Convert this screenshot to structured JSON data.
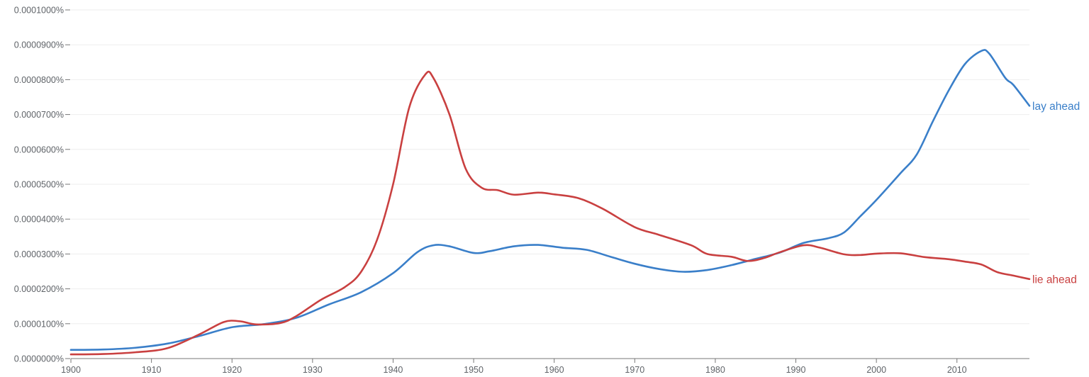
{
  "chart_data": {
    "type": "line",
    "xlim": [
      1900,
      2019
    ],
    "ylim": [
      0,
      1e-07
    ],
    "grid": true,
    "x_ticks": [
      1900,
      1910,
      1920,
      1930,
      1940,
      1950,
      1960,
      1970,
      1980,
      1990,
      2000,
      2010
    ],
    "y_ticks": [
      {
        "value": 0,
        "label": "0.0000000%"
      },
      {
        "value": 1e-08,
        "label": "0.0000100%"
      },
      {
        "value": 2e-08,
        "label": "0.0000200%"
      },
      {
        "value": 3e-08,
        "label": "0.0000300%"
      },
      {
        "value": 4e-08,
        "label": "0.0000400%"
      },
      {
        "value": 5e-08,
        "label": "0.0000500%"
      },
      {
        "value": 6e-08,
        "label": "0.0000600%"
      },
      {
        "value": 7e-08,
        "label": "0.0000700%"
      },
      {
        "value": 8e-08,
        "label": "0.0000800%"
      },
      {
        "value": 9e-08,
        "label": "0.0000900%"
      },
      {
        "value": 1e-07,
        "label": "0.0001000%"
      }
    ],
    "series": [
      {
        "name": "lay ahead",
        "color": "#3a7fc9",
        "points": [
          [
            1900,
            2.5e-09
          ],
          [
            1904,
            2.6e-09
          ],
          [
            1908,
            3.1e-09
          ],
          [
            1912,
            4.3e-09
          ],
          [
            1916,
            6.5e-09
          ],
          [
            1920,
            9e-09
          ],
          [
            1924,
            9.9e-09
          ],
          [
            1928,
            1.17e-08
          ],
          [
            1932,
            1.55e-08
          ],
          [
            1936,
            1.9e-08
          ],
          [
            1940,
            2.45e-08
          ],
          [
            1943,
            3.05e-08
          ],
          [
            1945,
            3.25e-08
          ],
          [
            1947,
            3.22e-08
          ],
          [
            1950,
            3.03e-08
          ],
          [
            1952,
            3.08e-08
          ],
          [
            1955,
            3.22e-08
          ],
          [
            1958,
            3.26e-08
          ],
          [
            1961,
            3.18e-08
          ],
          [
            1964,
            3.12e-08
          ],
          [
            1967,
            2.92e-08
          ],
          [
            1970,
            2.72e-08
          ],
          [
            1973,
            2.57e-08
          ],
          [
            1976,
            2.49e-08
          ],
          [
            1979,
            2.54e-08
          ],
          [
            1982,
            2.68e-08
          ],
          [
            1985,
            2.86e-08
          ],
          [
            1988,
            3.04e-08
          ],
          [
            1991,
            3.32e-08
          ],
          [
            1994,
            3.45e-08
          ],
          [
            1996,
            3.62e-08
          ],
          [
            1998,
            4.08e-08
          ],
          [
            2000,
            4.55e-08
          ],
          [
            2003,
            5.32e-08
          ],
          [
            2005,
            5.85e-08
          ],
          [
            2007,
            6.8e-08
          ],
          [
            2009,
            7.7e-08
          ],
          [
            2011,
            8.45e-08
          ],
          [
            2013,
            8.82e-08
          ],
          [
            2014,
            8.75e-08
          ],
          [
            2016,
            8.05e-08
          ],
          [
            2017,
            7.85e-08
          ],
          [
            2019,
            7.25e-08
          ]
        ]
      },
      {
        "name": "lie ahead",
        "color": "#c94040",
        "points": [
          [
            1900,
            1.2e-09
          ],
          [
            1904,
            1.3e-09
          ],
          [
            1908,
            1.8e-09
          ],
          [
            1912,
            3e-09
          ],
          [
            1916,
            7e-09
          ],
          [
            1919,
            1.05e-08
          ],
          [
            1921,
            1.07e-08
          ],
          [
            1923,
            9.8e-09
          ],
          [
            1926,
            1.02e-08
          ],
          [
            1928,
            1.22e-08
          ],
          [
            1931,
            1.68e-08
          ],
          [
            1934,
            2.05e-08
          ],
          [
            1936,
            2.48e-08
          ],
          [
            1938,
            3.4e-08
          ],
          [
            1940,
            5e-08
          ],
          [
            1942,
            7.2e-08
          ],
          [
            1944,
            8.15e-08
          ],
          [
            1945,
            8.05e-08
          ],
          [
            1947,
            7e-08
          ],
          [
            1949,
            5.45e-08
          ],
          [
            1951,
            4.9e-08
          ],
          [
            1953,
            4.83e-08
          ],
          [
            1955,
            4.7e-08
          ],
          [
            1958,
            4.76e-08
          ],
          [
            1960,
            4.71e-08
          ],
          [
            1963,
            4.6e-08
          ],
          [
            1966,
            4.3e-08
          ],
          [
            1970,
            3.77e-08
          ],
          [
            1973,
            3.55e-08
          ],
          [
            1977,
            3.25e-08
          ],
          [
            1979,
            3e-08
          ],
          [
            1982,
            2.92e-08
          ],
          [
            1984,
            2.8e-08
          ],
          [
            1986,
            2.88e-08
          ],
          [
            1988,
            3.05e-08
          ],
          [
            1991,
            3.25e-08
          ],
          [
            1993,
            3.18e-08
          ],
          [
            1996,
            2.99e-08
          ],
          [
            1998,
            2.97e-08
          ],
          [
            2000,
            3.01e-08
          ],
          [
            2003,
            3.02e-08
          ],
          [
            2006,
            2.91e-08
          ],
          [
            2009,
            2.85e-08
          ],
          [
            2011,
            2.78e-08
          ],
          [
            2013,
            2.7e-08
          ],
          [
            2015,
            2.48e-08
          ],
          [
            2017,
            2.38e-08
          ],
          [
            2019,
            2.28e-08
          ]
        ]
      }
    ]
  }
}
